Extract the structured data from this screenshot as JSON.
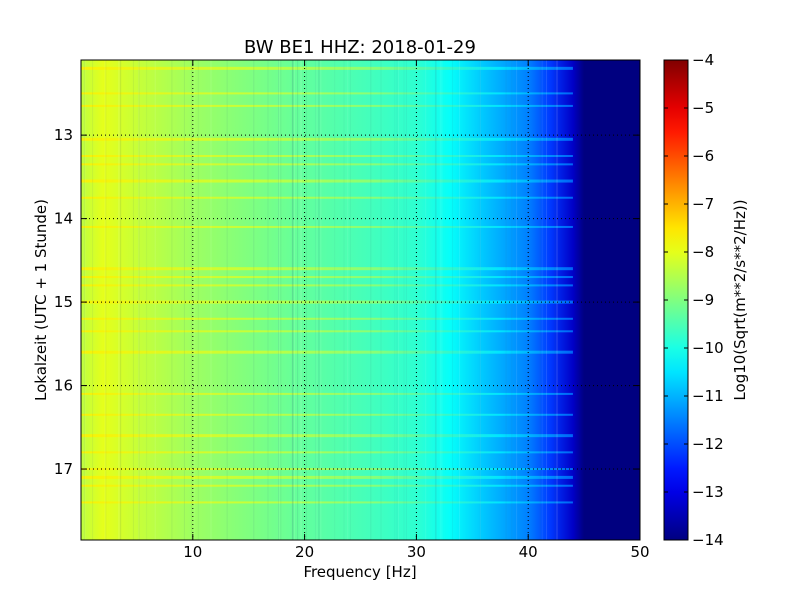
{
  "chart_data": {
    "type": "heatmap",
    "title": "BW BE1 HHZ: 2018-01-29",
    "xlabel": "Frequency [Hz]",
    "ylabel": "Lokalzeit (UTC + 1 Stunde)",
    "xlim": [
      0,
      50
    ],
    "ylim": [
      12.1,
      17.85
    ],
    "y_inverted": true,
    "x_ticks": [
      "10",
      "20",
      "30",
      "40",
      "50"
    ],
    "y_ticks": [
      "13",
      "14",
      "15",
      "16",
      "17"
    ],
    "grid": true,
    "colormap": "jet",
    "colorbar": {
      "label": "Log10(Sqrt(m**2/s**2/Hz))",
      "range": [
        -14,
        -4
      ],
      "ticks": [
        "-4",
        "-5",
        "-6",
        "-7",
        "-8",
        "-9",
        "-10",
        "-11",
        "-12",
        "-13",
        "-14"
      ]
    },
    "spectrum_profile": {
      "frequency_hz": [
        0,
        2,
        5,
        10,
        20,
        30,
        33,
        36,
        40,
        42,
        44,
        45,
        50
      ],
      "log10_amplitude": [
        -8.4,
        -8.0,
        -8.3,
        -8.7,
        -9.3,
        -9.8,
        -10.2,
        -10.8,
        -11.5,
        -12.2,
        -13.3,
        -14,
        -14
      ]
    },
    "stripe_hours": [
      12.2,
      12.5,
      12.65,
      13.05,
      13.25,
      13.35,
      13.55,
      13.75,
      14.1,
      14.6,
      14.7,
      14.8,
      15.0,
      15.2,
      15.35,
      15.6,
      16.1,
      16.35,
      16.6,
      16.8,
      17.0,
      17.1,
      17.2,
      17.4
    ]
  }
}
